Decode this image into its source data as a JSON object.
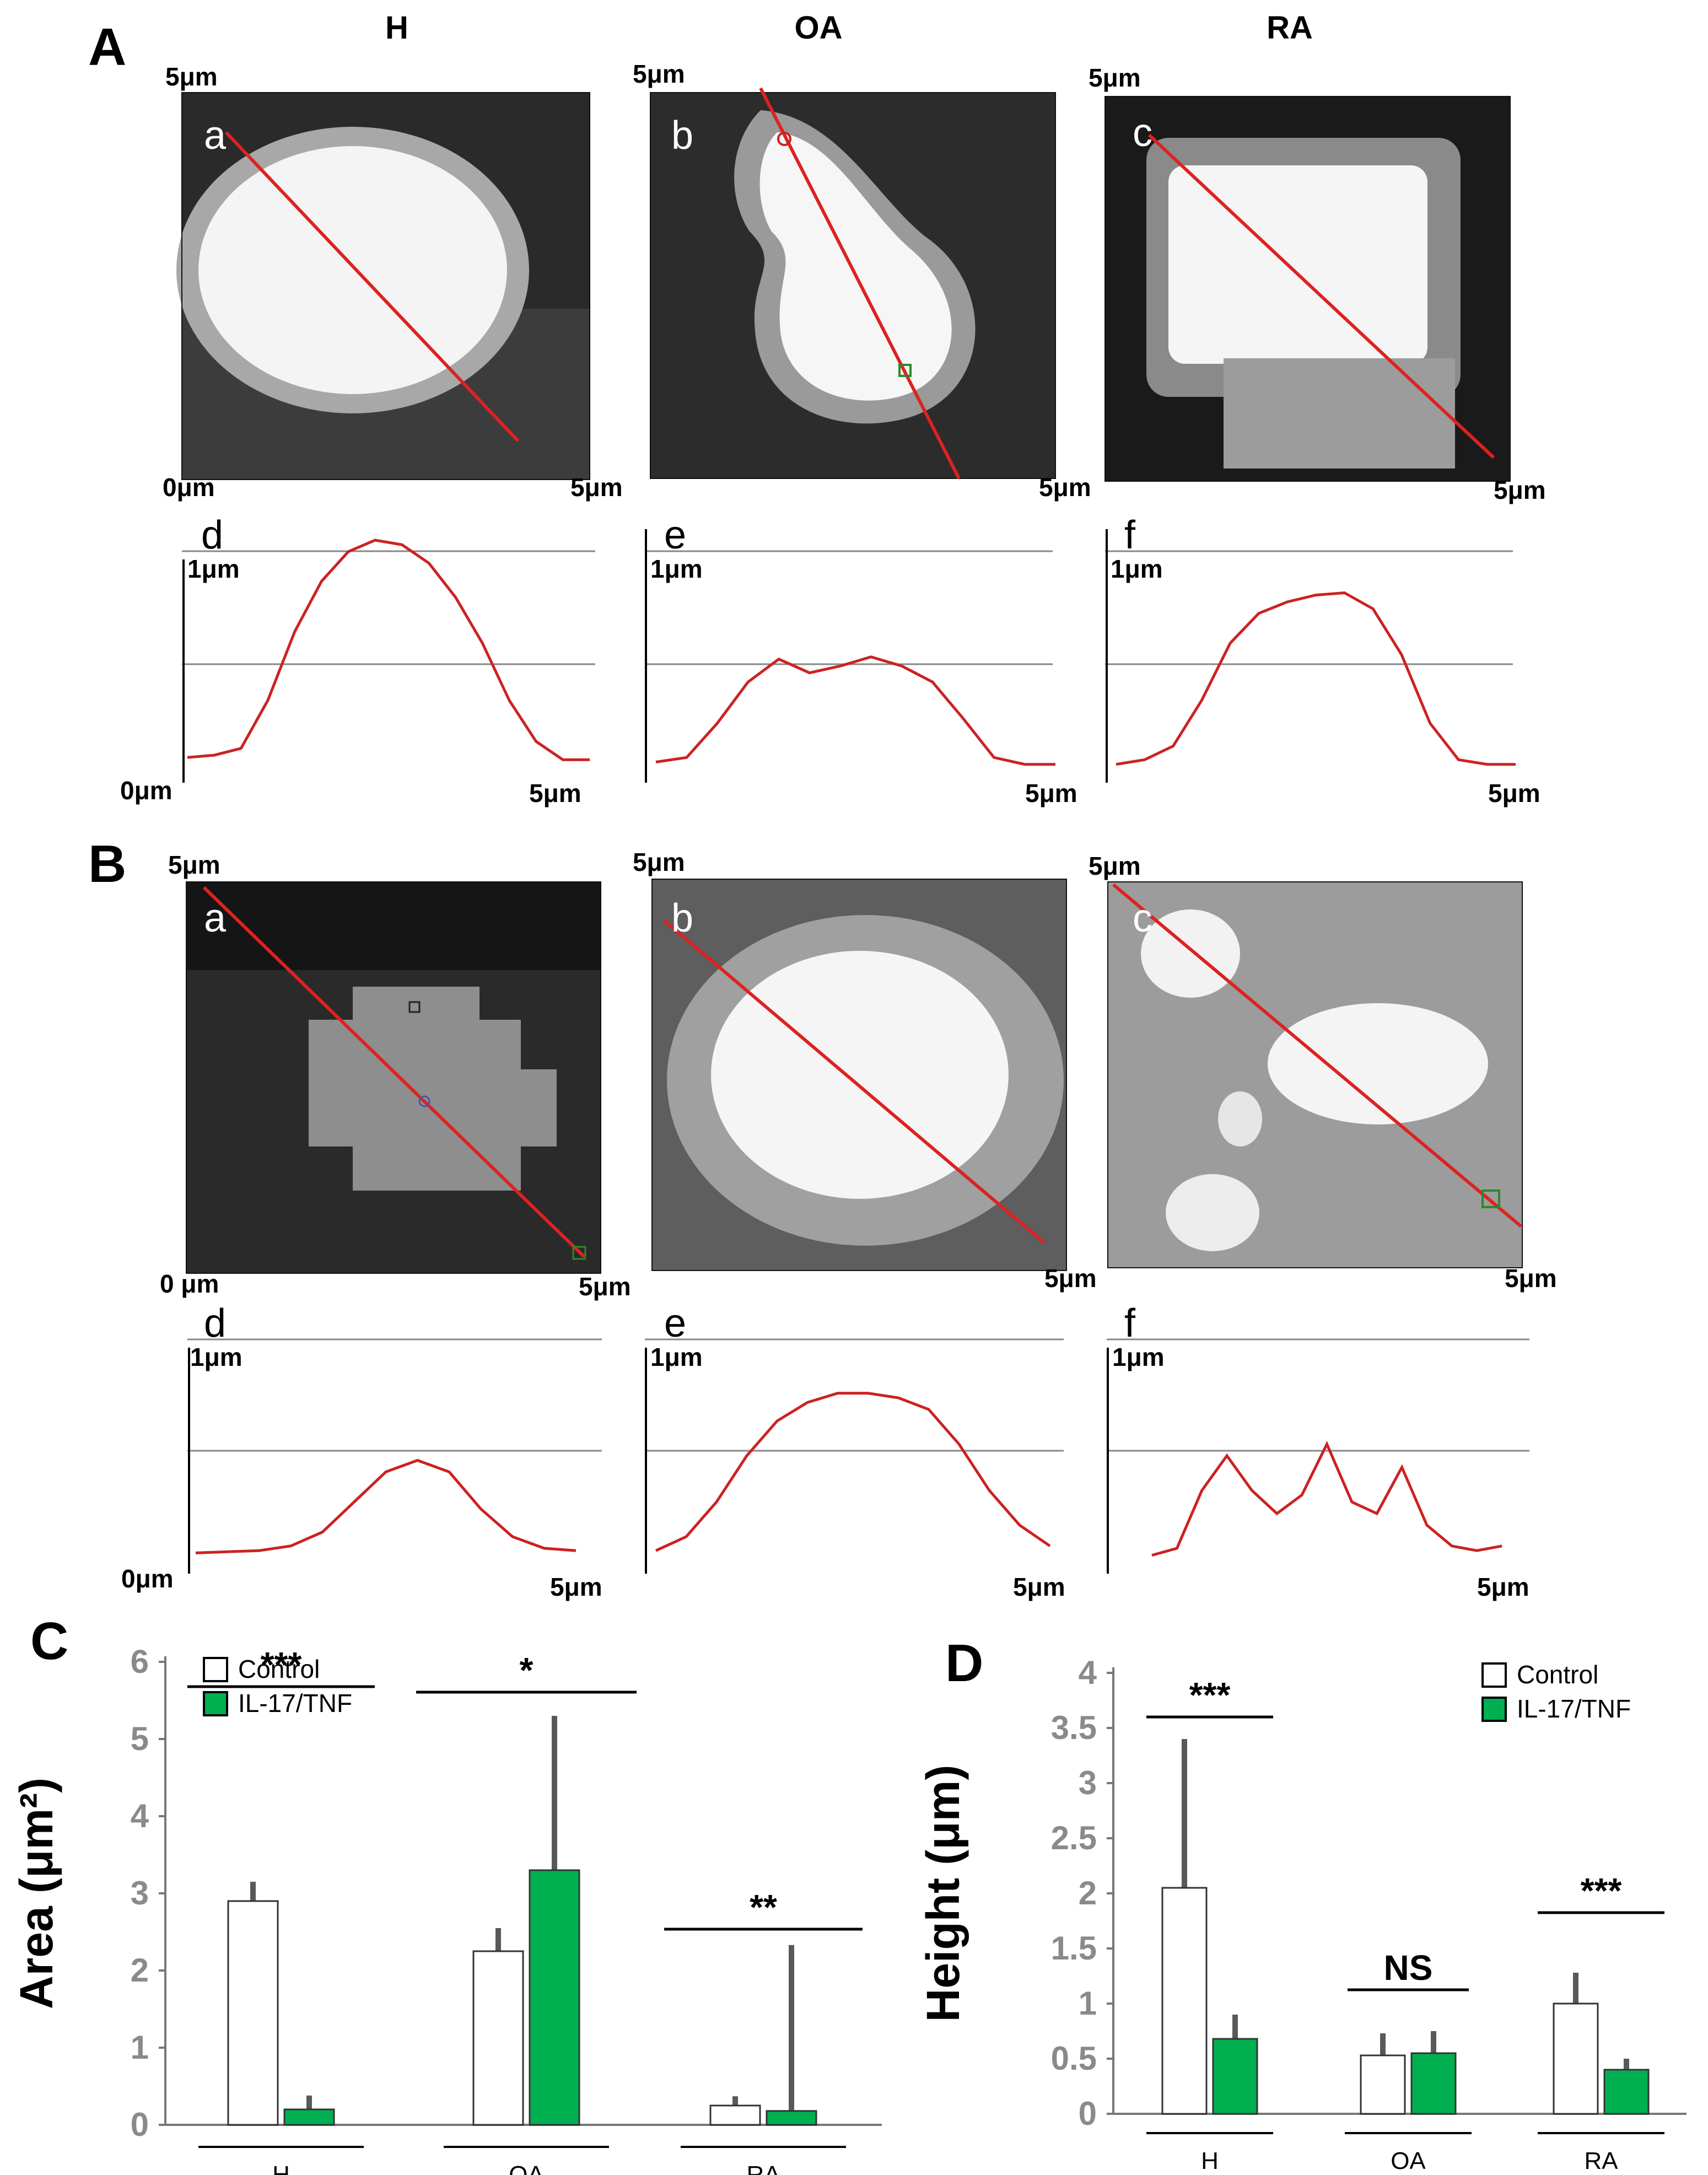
{
  "columns": {
    "h": "H",
    "oa": "OA",
    "ra": "RA"
  },
  "panels": {
    "A": "A",
    "B": "B",
    "C": "C",
    "D": "D"
  },
  "image_letters": {
    "a": "a",
    "b": "b",
    "c": "c",
    "d": "d",
    "e": "e",
    "f": "f"
  },
  "scale": {
    "top": "5μm",
    "right": "5μm",
    "origin_A": "0μm",
    "origin_B": "0 μm",
    "profile_top": "1μm",
    "profile_origin": "0μm",
    "profile_end": "5μm"
  },
  "colors": {
    "profile": "#cc2222",
    "control": "#ffffff",
    "treated": "#00b050",
    "error": "#595959"
  },
  "chart_data": [
    {
      "id": "C",
      "type": "bar",
      "title": "",
      "ylabel": "Area (μm²)",
      "ylim": [
        0,
        6
      ],
      "yticks": [
        0,
        1,
        2,
        3,
        4,
        5,
        6
      ],
      "categories": [
        "H",
        "OA",
        "RA"
      ],
      "series": [
        {
          "name": "Control",
          "values": [
            2.9,
            2.25,
            0.25
          ],
          "errors": [
            0.25,
            0.3,
            0.12
          ]
        },
        {
          "name": "IL-17/TNF",
          "values": [
            0.2,
            3.3,
            0.18
          ],
          "errors": [
            0.18,
            2.0,
            2.15
          ]
        }
      ],
      "significance": [
        "***",
        "*",
        "**"
      ],
      "legend": "top-left"
    },
    {
      "id": "D",
      "type": "bar",
      "title": "",
      "ylabel": "Height (μm)",
      "ylim": [
        0,
        4
      ],
      "yticks": [
        "0",
        "0.5",
        "1",
        "1.5",
        "2",
        "2.5",
        "3",
        "3.5",
        "4"
      ],
      "categories": [
        "H",
        "OA",
        "RA"
      ],
      "series": [
        {
          "name": "Control",
          "values": [
            2.05,
            0.53,
            1.0
          ],
          "errors": [
            1.35,
            0.2,
            0.28
          ]
        },
        {
          "name": "IL-17/TNF",
          "values": [
            0.68,
            0.55,
            0.4
          ],
          "errors": [
            0.22,
            0.2,
            0.1
          ]
        }
      ],
      "significance": [
        "***",
        "NS",
        "***"
      ],
      "legend": "top-right"
    }
  ],
  "profiles": {
    "Ad": [
      0.05,
      0.06,
      0.09,
      0.3,
      0.6,
      0.82,
      0.95,
      1.0,
      0.98,
      0.9,
      0.75,
      0.55,
      0.3,
      0.12,
      0.04,
      0.04
    ],
    "Ae": [
      0.03,
      0.05,
      0.2,
      0.38,
      0.48,
      0.42,
      0.45,
      0.49,
      0.45,
      0.38,
      0.22,
      0.05,
      0.02,
      0.02
    ],
    "Af": [
      0.02,
      0.04,
      0.1,
      0.3,
      0.55,
      0.68,
      0.73,
      0.76,
      0.77,
      0.7,
      0.5,
      0.2,
      0.04,
      0.02,
      0.02
    ],
    "Bd": [
      0.03,
      0.035,
      0.04,
      0.06,
      0.12,
      0.25,
      0.38,
      0.43,
      0.38,
      0.22,
      0.1,
      0.05,
      0.04
    ],
    "Be": [
      0.04,
      0.1,
      0.25,
      0.45,
      0.6,
      0.68,
      0.72,
      0.72,
      0.7,
      0.65,
      0.5,
      0.3,
      0.15,
      0.06
    ],
    "Bf": [
      0.02,
      0.05,
      0.3,
      0.45,
      0.3,
      0.2,
      0.28,
      0.5,
      0.25,
      0.2,
      0.4,
      0.15,
      0.06,
      0.04,
      0.06
    ]
  }
}
